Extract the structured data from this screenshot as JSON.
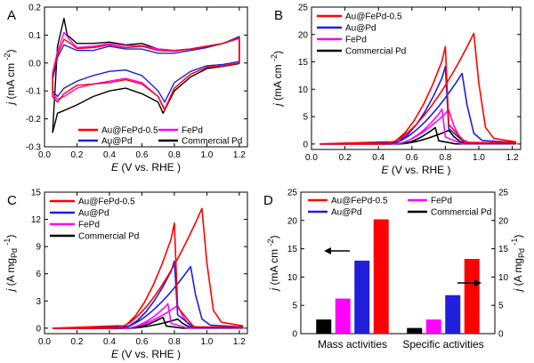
{
  "colors": {
    "au_fepd": "#ff0000",
    "au_pd": "#1f1fdc",
    "fepd": "#ff00ff",
    "commercial_pd": "#000000"
  },
  "chart_data": [
    {
      "panel": "A",
      "type": "line",
      "xlabel": "E (V vs. RHE)",
      "ylabel": "j (mA cm-2)",
      "xlim": [
        0.0,
        1.25
      ],
      "ylim": [
        -0.3,
        0.2
      ],
      "xticks": [
        "0.0",
        "0.2",
        "0.4",
        "0.6",
        "0.8",
        "1.0",
        "1.2"
      ],
      "yticks": [
        "-0.3",
        "-0.2",
        "-0.1",
        "0.0",
        "0.1",
        "0.2"
      ],
      "legend": [
        "Au@FePd-0.5",
        "FePd",
        "Au@Pd",
        "Commercial Pd"
      ],
      "legend_position": "bottom",
      "series": [
        {
          "name": "Au@FePd-0.5",
          "color": "#ff0000",
          "anodic": [
            [
              0.05,
              -0.045
            ],
            [
              0.08,
              0.03
            ],
            [
              0.12,
              0.085
            ],
            [
              0.16,
              0.07
            ],
            [
              0.2,
              0.052
            ],
            [
              0.3,
              0.055
            ],
            [
              0.4,
              0.065
            ],
            [
              0.5,
              0.055
            ],
            [
              0.6,
              0.06
            ],
            [
              0.7,
              0.045
            ],
            [
              0.8,
              0.042
            ],
            [
              0.9,
              0.05
            ],
            [
              1.0,
              0.06
            ],
            [
              1.1,
              0.07
            ],
            [
              1.2,
              0.09
            ]
          ],
          "cathodic": [
            [
              1.2,
              0.0
            ],
            [
              1.1,
              -0.01
            ],
            [
              1.0,
              -0.015
            ],
            [
              0.9,
              -0.04
            ],
            [
              0.8,
              -0.09
            ],
            [
              0.74,
              -0.17
            ],
            [
              0.7,
              -0.12
            ],
            [
              0.6,
              -0.075
            ],
            [
              0.5,
              -0.06
            ],
            [
              0.4,
              -0.07
            ],
            [
              0.3,
              -0.075
            ],
            [
              0.2,
              -0.08
            ],
            [
              0.12,
              -0.11
            ],
            [
              0.08,
              -0.14
            ],
            [
              0.05,
              -0.12
            ]
          ]
        },
        {
          "name": "FePd",
          "color": "#ff00ff",
          "anodic": [
            [
              0.05,
              -0.035
            ],
            [
              0.08,
              0.04
            ],
            [
              0.12,
              0.11
            ],
            [
              0.16,
              0.08
            ],
            [
              0.2,
              0.055
            ],
            [
              0.3,
              0.06
            ],
            [
              0.4,
              0.07
            ],
            [
              0.5,
              0.062
            ],
            [
              0.6,
              0.062
            ],
            [
              0.7,
              0.05
            ],
            [
              0.8,
              0.045
            ],
            [
              0.9,
              0.05
            ],
            [
              1.0,
              0.06
            ],
            [
              1.1,
              0.07
            ],
            [
              1.2,
              0.088
            ]
          ],
          "cathodic": [
            [
              1.2,
              0.0
            ],
            [
              1.1,
              -0.01
            ],
            [
              1.0,
              -0.015
            ],
            [
              0.9,
              -0.04
            ],
            [
              0.8,
              -0.09
            ],
            [
              0.74,
              -0.165
            ],
            [
              0.7,
              -0.12
            ],
            [
              0.6,
              -0.07
            ],
            [
              0.5,
              -0.055
            ],
            [
              0.4,
              -0.065
            ],
            [
              0.3,
              -0.075
            ],
            [
              0.2,
              -0.09
            ],
            [
              0.12,
              -0.12
            ],
            [
              0.08,
              -0.13
            ],
            [
              0.05,
              -0.11
            ]
          ]
        },
        {
          "name": "Au@Pd",
          "color": "#1f1fdc",
          "anodic": [
            [
              0.05,
              -0.06
            ],
            [
              0.08,
              0.02
            ],
            [
              0.12,
              0.065
            ],
            [
              0.16,
              0.055
            ],
            [
              0.2,
              0.045
            ],
            [
              0.3,
              0.045
            ],
            [
              0.4,
              0.06
            ],
            [
              0.5,
              0.05
            ],
            [
              0.6,
              0.05
            ],
            [
              0.7,
              0.035
            ],
            [
              0.8,
              0.035
            ],
            [
              0.9,
              0.045
            ],
            [
              1.0,
              0.055
            ],
            [
              1.1,
              0.07
            ],
            [
              1.2,
              0.095
            ]
          ],
          "cathodic": [
            [
              1.2,
              0.005
            ],
            [
              1.1,
              -0.005
            ],
            [
              1.0,
              -0.01
            ],
            [
              0.9,
              -0.03
            ],
            [
              0.8,
              -0.07
            ],
            [
              0.74,
              -0.14
            ],
            [
              0.7,
              -0.1
            ],
            [
              0.6,
              -0.045
            ],
            [
              0.5,
              -0.025
            ],
            [
              0.4,
              -0.03
            ],
            [
              0.3,
              -0.045
            ],
            [
              0.2,
              -0.065
            ],
            [
              0.12,
              -0.09
            ],
            [
              0.08,
              -0.12
            ],
            [
              0.05,
              -0.1
            ]
          ]
        },
        {
          "name": "Commercial Pd",
          "color": "#000000",
          "anodic": [
            [
              0.05,
              -0.25
            ],
            [
              0.08,
              0.06
            ],
            [
              0.12,
              0.16
            ],
            [
              0.14,
              0.1
            ],
            [
              0.2,
              0.07
            ],
            [
              0.3,
              0.07
            ],
            [
              0.4,
              0.075
            ],
            [
              0.5,
              0.065
            ],
            [
              0.6,
              0.07
            ],
            [
              0.7,
              0.05
            ],
            [
              0.8,
              0.045
            ],
            [
              0.9,
              0.05
            ],
            [
              1.0,
              0.06
            ],
            [
              1.1,
              0.07
            ],
            [
              1.2,
              0.09
            ]
          ],
          "cathodic": [
            [
              1.2,
              -0.002
            ],
            [
              1.1,
              -0.012
            ],
            [
              1.0,
              -0.02
            ],
            [
              0.9,
              -0.05
            ],
            [
              0.8,
              -0.1
            ],
            [
              0.73,
              -0.18
            ],
            [
              0.7,
              -0.14
            ],
            [
              0.6,
              -0.11
            ],
            [
              0.5,
              -0.09
            ],
            [
              0.4,
              -0.1
            ],
            [
              0.3,
              -0.12
            ],
            [
              0.2,
              -0.15
            ],
            [
              0.12,
              -0.17
            ],
            [
              0.08,
              -0.18
            ],
            [
              0.05,
              -0.25
            ]
          ]
        }
      ]
    },
    {
      "panel": "B",
      "type": "line",
      "xlabel": "E (V vs. RHE)",
      "ylabel": "j (mA cm-2)",
      "xlim": [
        0.0,
        1.25
      ],
      "ylim": [
        -1,
        25
      ],
      "xticks": [
        "0.0",
        "0.2",
        "0.4",
        "0.6",
        "0.8",
        "1.0",
        "1.2"
      ],
      "yticks": [
        "0",
        "5",
        "10",
        "15",
        "20",
        "25"
      ],
      "legend": [
        "Au@FePd-0.5",
        "Au@Pd",
        "FePd",
        "Commercial Pd"
      ],
      "legend_position": "top-left",
      "series": [
        {
          "name": "Au@FePd-0.5",
          "color": "#ff0000",
          "onset": 0.45,
          "fwd_peak": [
            0.97,
            20.2
          ],
          "rev_peak": [
            0.8,
            17.8
          ]
        },
        {
          "name": "Au@Pd",
          "color": "#1f1fdc",
          "onset": 0.47,
          "fwd_peak": [
            0.9,
            12.9
          ],
          "rev_peak": [
            0.8,
            14.2
          ]
        },
        {
          "name": "FePd",
          "color": "#ff00ff",
          "onset": 0.5,
          "fwd_peak": [
            0.82,
            6.2
          ],
          "rev_peak": [
            0.78,
            6.4
          ]
        },
        {
          "name": "Commercial Pd",
          "color": "#000000",
          "onset": 0.52,
          "fwd_peak": [
            0.82,
            2.5
          ],
          "rev_peak": [
            0.74,
            3.0
          ]
        }
      ]
    },
    {
      "panel": "C",
      "type": "line",
      "xlabel": "E (V vs. RHE)",
      "ylabel": "j (A mgPd-1)",
      "xlim": [
        0.0,
        1.25
      ],
      "ylim": [
        -0.6,
        15
      ],
      "xticks": [
        "0.0",
        "0.2",
        "0.4",
        "0.6",
        "0.8",
        "1.0",
        "1.2"
      ],
      "yticks": [
        "0",
        "3",
        "6",
        "9",
        "12",
        "15"
      ],
      "legend": [
        "Au@FePd-0.5",
        "Au@Pd",
        "FePd",
        "Commercial Pd"
      ],
      "legend_position": "top-left",
      "series": [
        {
          "name": "Au@FePd-0.5",
          "color": "#ff0000",
          "onset": 0.45,
          "fwd_peak": [
            0.97,
            13.2
          ],
          "rev_peak": [
            0.8,
            11.6
          ]
        },
        {
          "name": "Au@Pd",
          "color": "#1f1fdc",
          "onset": 0.47,
          "fwd_peak": [
            0.9,
            6.8
          ],
          "rev_peak": [
            0.8,
            7.4
          ]
        },
        {
          "name": "FePd",
          "color": "#ff00ff",
          "onset": 0.5,
          "fwd_peak": [
            0.82,
            2.5
          ],
          "rev_peak": [
            0.76,
            2.7
          ]
        },
        {
          "name": "Commercial Pd",
          "color": "#000000",
          "onset": 0.52,
          "fwd_peak": [
            0.82,
            1.0
          ],
          "rev_peak": [
            0.73,
            1.2
          ]
        }
      ]
    },
    {
      "panel": "D",
      "type": "bar",
      "ylabel": "j (mA cm-2)",
      "ylabel_right": "j (A mgPd-1)",
      "ylim": [
        0,
        25
      ],
      "ylim_right": [
        0,
        25
      ],
      "yticks": [
        "0",
        "5",
        "10",
        "15",
        "20",
        "25"
      ],
      "categories": [
        "Mass activities",
        "Specific activities"
      ],
      "legend": [
        "Au@FePd-0.5",
        "FePd",
        "Au@Pd",
        "Commercial Pd"
      ],
      "legend_position": "top",
      "series": [
        {
          "name": "Commercial Pd",
          "color": "#000000",
          "values": [
            2.5,
            1.0
          ]
        },
        {
          "name": "FePd",
          "color": "#ff00ff",
          "values": [
            6.2,
            2.5
          ]
        },
        {
          "name": "Au@Pd",
          "color": "#1f1fdc",
          "values": [
            12.9,
            6.8
          ]
        },
        {
          "name": "Au@FePd-0.5",
          "color": "#ff0000",
          "values": [
            20.2,
            13.2
          ]
        }
      ]
    }
  ]
}
